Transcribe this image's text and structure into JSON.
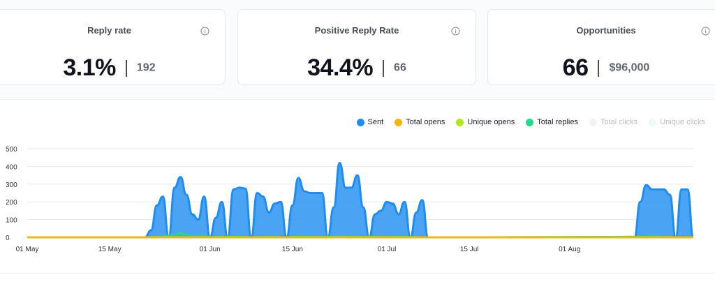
{
  "cards": [
    {
      "title": "Reply rate",
      "value": "3.1%",
      "sub": "192"
    },
    {
      "title": "Positive Reply Rate",
      "value": "34.4%",
      "sub": "66"
    },
    {
      "title": "Opportunities",
      "value": "66",
      "sub": "$96,000"
    }
  ],
  "legend": [
    {
      "label": "Sent",
      "color": "#1e8cf0",
      "active": true
    },
    {
      "label": "Total opens",
      "color": "#f3b50f",
      "active": true
    },
    {
      "label": "Unique opens",
      "color": "#b2e61c",
      "active": true
    },
    {
      "label": "Total replies",
      "color": "#1fdc8a",
      "active": true
    },
    {
      "label": "Total clicks",
      "color": "#f3f3f5",
      "active": false
    },
    {
      "label": "Unique clicks",
      "color": "#eef9f3",
      "active": false
    }
  ],
  "chart_data": {
    "type": "area",
    "y_ticks": [
      "0",
      "100",
      "200",
      "300",
      "400",
      "500"
    ],
    "ylim": [
      0,
      500
    ],
    "x_ticks": [
      "01 May",
      "15 May",
      "01 Jun",
      "15 Jun",
      "01 Jul",
      "15 Jul",
      "01 Aug"
    ],
    "x_tick_days": [
      0,
      14,
      31,
      45,
      61,
      75,
      92
    ],
    "x_range_days": [
      0,
      110
    ],
    "grid": true,
    "legend_placement": "top-right",
    "series": [
      {
        "name": "Sent",
        "color": "#1e8cf0",
        "points": [
          [
            0,
            0
          ],
          [
            20,
            0
          ],
          [
            21,
            40
          ],
          [
            22,
            180
          ],
          [
            23,
            230
          ],
          [
            24,
            0
          ],
          [
            25,
            280
          ],
          [
            26,
            340
          ],
          [
            27,
            240
          ],
          [
            28,
            130
          ],
          [
            29,
            100
          ],
          [
            30,
            230
          ],
          [
            31,
            0
          ],
          [
            32,
            110
          ],
          [
            33,
            200
          ],
          [
            34,
            0
          ],
          [
            35,
            270
          ],
          [
            36,
            280
          ],
          [
            37,
            275
          ],
          [
            38,
            0
          ],
          [
            39,
            250
          ],
          [
            40,
            230
          ],
          [
            41,
            140
          ],
          [
            42,
            190
          ],
          [
            43,
            200
          ],
          [
            44,
            0
          ],
          [
            45,
            180
          ],
          [
            46,
            335
          ],
          [
            47,
            260
          ],
          [
            48,
            250
          ],
          [
            49,
            250
          ],
          [
            50,
            250
          ],
          [
            51,
            0
          ],
          [
            52,
            170
          ],
          [
            53,
            420
          ],
          [
            54,
            280
          ],
          [
            55,
            280
          ],
          [
            56,
            350
          ],
          [
            57,
            170
          ],
          [
            58,
            0
          ],
          [
            59,
            130
          ],
          [
            60,
            150
          ],
          [
            61,
            200
          ],
          [
            62,
            190
          ],
          [
            63,
            130
          ],
          [
            64,
            200
          ],
          [
            65,
            0
          ],
          [
            66,
            140
          ],
          [
            67,
            210
          ],
          [
            68,
            0
          ],
          [
            103,
            0
          ],
          [
            104,
            200
          ],
          [
            105,
            295
          ],
          [
            106,
            270
          ],
          [
            107,
            270
          ],
          [
            108,
            270
          ],
          [
            109,
            240
          ],
          [
            110,
            0
          ],
          [
            111,
            270
          ],
          [
            112,
            270
          ],
          [
            113,
            0
          ]
        ]
      },
      {
        "name": "Total opens",
        "color": "#f3b50f",
        "points": [
          [
            0,
            0
          ],
          [
            113,
            0
          ]
        ]
      },
      {
        "name": "Unique opens",
        "color": "#b2e61c",
        "points": [
          [
            0,
            0
          ],
          [
            113,
            0
          ]
        ]
      },
      {
        "name": "Total replies",
        "color": "#1fdc8a",
        "points": [
          [
            0,
            0
          ],
          [
            20,
            0
          ],
          [
            22,
            6
          ],
          [
            25,
            12
          ],
          [
            26,
            26
          ],
          [
            27,
            16
          ],
          [
            28,
            8
          ],
          [
            30,
            10
          ],
          [
            31,
            2
          ],
          [
            33,
            4
          ],
          [
            36,
            6
          ],
          [
            38,
            0
          ],
          [
            41,
            4
          ],
          [
            44,
            0
          ],
          [
            46,
            6
          ],
          [
            50,
            3
          ],
          [
            53,
            8
          ],
          [
            56,
            4
          ],
          [
            60,
            6
          ],
          [
            64,
            4
          ],
          [
            68,
            0
          ],
          [
            104,
            4
          ],
          [
            106,
            10
          ],
          [
            108,
            6
          ],
          [
            110,
            2
          ],
          [
            113,
            0
          ]
        ]
      }
    ]
  }
}
